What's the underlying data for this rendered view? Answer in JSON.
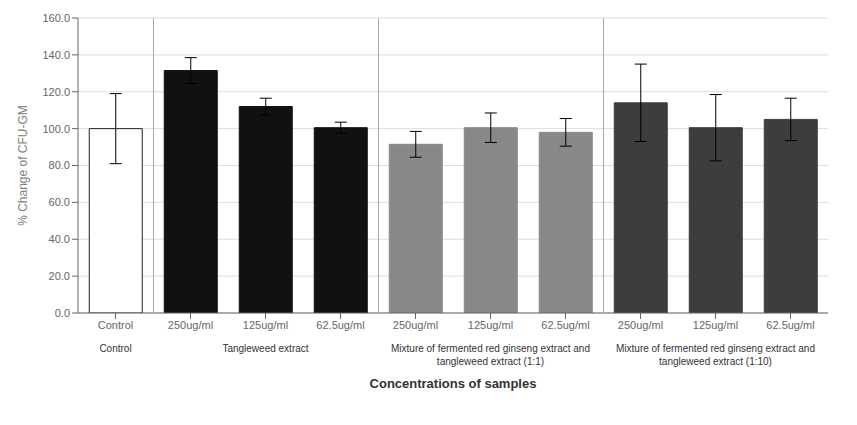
{
  "chart_data": {
    "type": "bar",
    "categories": [
      "Control",
      "250ug/ml",
      "125ug/ml",
      "62.5ug/ml",
      "250ug/ml",
      "125ug/ml",
      "62.5ug/ml",
      "250ug/ml",
      "125ug/ml",
      "62.5ug/ml"
    ],
    "values": [
      100.0,
      131.5,
      112.0,
      100.5,
      91.5,
      100.5,
      98.0,
      114.0,
      100.5,
      105.0
    ],
    "errors": [
      19.0,
      7.0,
      4.5,
      3.0,
      7.0,
      8.0,
      7.5,
      21.0,
      18.0,
      11.5
    ],
    "colors": [
      "#ffffff",
      "#111111",
      "#111111",
      "#111111",
      "#888888",
      "#888888",
      "#888888",
      "#3d3d3d",
      "#3d3d3d",
      "#3d3d3d"
    ],
    "edge_colors": [
      "#222222",
      "#111111",
      "#111111",
      "#111111",
      "#888888",
      "#888888",
      "#888888",
      "#3d3d3d",
      "#3d3d3d",
      "#3d3d3d"
    ],
    "groups": [
      {
        "label": "Control",
        "start": 0,
        "end": 0
      },
      {
        "label": "Tangleweed extract",
        "start": 1,
        "end": 3
      },
      {
        "label": "Mixture of fermented red ginseng extract and\ntangleweed extract (1:1)",
        "start": 4,
        "end": 6
      },
      {
        "label": "Mixture of fermented red ginseng extract and\ntangleweed extract (1:10)",
        "start": 7,
        "end": 9
      }
    ],
    "ylabel": "% Change of CFU-GM",
    "xlabel": "Concentrations of samples",
    "ylim": [
      0.0,
      160.0
    ],
    "yticks": [
      {
        "value": 0.0,
        "label": "0.0"
      },
      {
        "value": 20.0,
        "label": "20.0"
      },
      {
        "value": 40.0,
        "label": "40.0"
      },
      {
        "value": 60.0,
        "label": "60.0"
      },
      {
        "value": 80.0,
        "label": "80.0"
      },
      {
        "value": 100.0,
        "label": "100.0"
      },
      {
        "value": 120.0,
        "label": "120.0"
      },
      {
        "value": 140.0,
        "label": "140.0"
      },
      {
        "value": 160.0,
        "label": "160.0"
      }
    ],
    "grid": true
  }
}
